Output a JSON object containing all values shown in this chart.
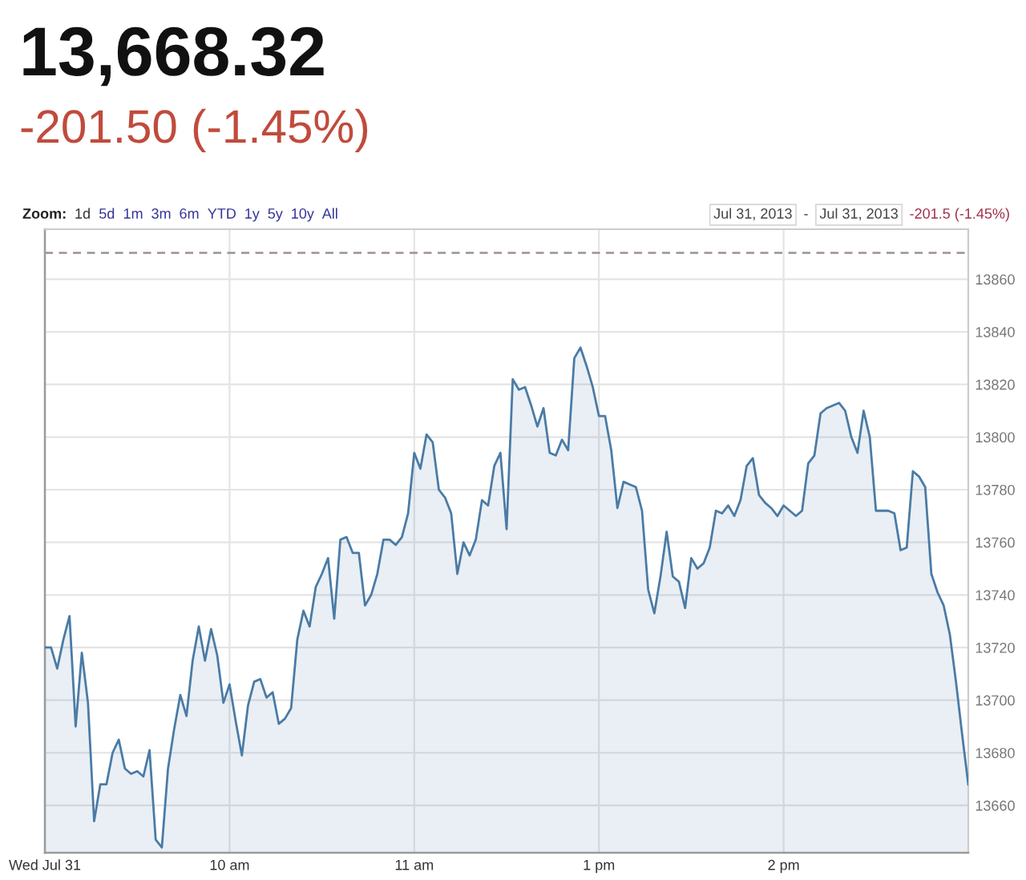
{
  "chart_data": {
    "type": "area",
    "title": "13,668.32",
    "subtitle": "-201.50 (-1.45%)",
    "annotations": [
      "Zoom:",
      "1d",
      "5d",
      "1m",
      "3m",
      "6m",
      "YTD",
      "1y",
      "5y",
      "10y",
      "All",
      "Jul 31, 2013",
      "-",
      "Jul 31, 2013",
      "-201.5 (-1.45%)"
    ],
    "categories": [
      "Wed Jul 31",
      null,
      null,
      null,
      null,
      null,
      null,
      null,
      null,
      null,
      null,
      null,
      null,
      null,
      null,
      null,
      null,
      null,
      null,
      null,
      null,
      null,
      null,
      null,
      null,
      null,
      null,
      null,
      null,
      null,
      "10 am",
      null,
      null,
      null,
      null,
      null,
      null,
      null,
      null,
      null,
      null,
      null,
      null,
      null,
      null,
      null,
      null,
      null,
      null,
      null,
      null,
      null,
      null,
      null,
      null,
      null,
      null,
      null,
      null,
      null,
      "11 am",
      null,
      null,
      null,
      null,
      null,
      null,
      null,
      null,
      null,
      null,
      null,
      null,
      null,
      null,
      null,
      null,
      null,
      null,
      null,
      null,
      null,
      null,
      null,
      null,
      null,
      null,
      null,
      null,
      null,
      "1 pm",
      null,
      null,
      null,
      null,
      null,
      null,
      null,
      null,
      null,
      null,
      null,
      null,
      null,
      null,
      null,
      null,
      null,
      null,
      null,
      null,
      null,
      null,
      null,
      null,
      null,
      null,
      null,
      null,
      null,
      "2 pm",
      null,
      null,
      null,
      null,
      null,
      null,
      null,
      null,
      null,
      null,
      null,
      null,
      null,
      null,
      null,
      null,
      null,
      null,
      null,
      null,
      null,
      null,
      null,
      null,
      null,
      null,
      null,
      null,
      null,
      null
    ],
    "values": [
      13720,
      13720,
      13712,
      13723,
      13732,
      13690,
      13718,
      13699,
      13654,
      13668,
      13668,
      13680,
      13685,
      13674,
      13672,
      13673,
      13671,
      13681,
      13647,
      13644,
      13674,
      13689,
      13702,
      13694,
      13715,
      13728,
      13715,
      13727,
      13717,
      13699,
      13706,
      13692,
      13679,
      13698,
      13707,
      13708,
      13701,
      13703,
      13691,
      13693,
      13697,
      13723,
      13734,
      13728,
      13743,
      13748,
      13754,
      13731,
      13761,
      13762,
      13756,
      13756,
      13736,
      13740,
      13748,
      13761,
      13761,
      13759,
      13762,
      13771,
      13794,
      13788,
      13801,
      13798,
      13780,
      13777,
      13771,
      13748,
      13760,
      13755,
      13761,
      13776,
      13774,
      13789,
      13794,
      13765,
      13822,
      13818,
      13819,
      13812,
      13804,
      13811,
      13794,
      13793,
      13799,
      13795,
      13830,
      13834,
      13827,
      13819,
      13808,
      13808,
      13795,
      13773,
      13783,
      13782,
      13781,
      13772,
      13742,
      13733,
      13747,
      13764,
      13747,
      13745,
      13735,
      13754,
      13750,
      13752,
      13758,
      13772,
      13771,
      13774,
      13770,
      13776,
      13789,
      13792,
      13778,
      13775,
      13773,
      13770,
      13774,
      13772,
      13770,
      13772,
      13790,
      13793,
      13809,
      13811,
      13812,
      13813,
      13810,
      13800,
      13794,
      13810,
      13800,
      13772,
      13772,
      13772,
      13771,
      13757,
      13758,
      13787,
      13785,
      13781,
      13748,
      13741,
      13736,
      13725,
      13707,
      13687,
      13668
    ],
    "color": "#4a7ba6",
    "ylim": [
      13642,
      13879
    ],
    "yticks": [
      13660,
      13680,
      13700,
      13720,
      13740,
      13760,
      13780,
      13800,
      13820,
      13840,
      13860
    ],
    "ref_lines": [
      {
        "axis": "y",
        "value": 13870,
        "color": "#a09090",
        "line_style": "dashed"
      }
    ],
    "grid": true
  }
}
